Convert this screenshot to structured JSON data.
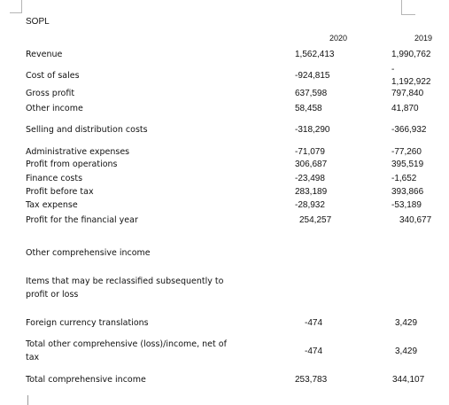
{
  "title": "SOPL",
  "years": {
    "y1": "2020",
    "y2": "2019"
  },
  "rows": {
    "revenue": {
      "label": "Revenue",
      "v2020": "1,562,413",
      "v2019": "1,990,762"
    },
    "cost_of_sales": {
      "label": "Cost of sales",
      "v2020": "-924,815",
      "v2019_dash": "-",
      "v2019": "1,192,922"
    },
    "gross_profit": {
      "label": "Gross profit",
      "v2020": "637,598",
      "v2019": "797,840"
    },
    "other_income": {
      "label": "Other income",
      "v2020": "58,458",
      "v2019": "41,870"
    },
    "selling": {
      "label": "Selling and distribution costs",
      "v2020": "-318,290",
      "v2019": "-366,932"
    },
    "admin": {
      "label": "Administrative expenses",
      "v2020": "-71,079",
      "v2019": "-77,260"
    },
    "profit_ops": {
      "label": "Profit from operations",
      "v2020": "306,687",
      "v2019": "395,519"
    },
    "finance": {
      "label": "Finance costs",
      "v2020": "-23,498",
      "v2019": "-1,652"
    },
    "pbt": {
      "label": "Profit before tax",
      "v2020": "283,189",
      "v2019": "393,866"
    },
    "tax": {
      "label": "Tax expense",
      "v2020": "-28,932",
      "v2019": "-53,189"
    },
    "profit_year": {
      "label": "Profit for the financial year",
      "v2020": "254,257",
      "v2019": "340,677"
    },
    "oci": {
      "label": "Other comprehensive income"
    },
    "reclass": {
      "label": "Items that may be reclassified subsequently to profit or loss"
    },
    "fx": {
      "label": "Foreign currency translations",
      "v2020": "-474",
      "v2019": "3,429"
    },
    "total_oci": {
      "label": "Total other comprehensive (loss)/income, net of tax",
      "v2020": "-474",
      "v2019": "3,429"
    },
    "total_ci": {
      "label": "Total comprehensive income",
      "v2020": "253,783",
      "v2019": "344,107"
    }
  }
}
